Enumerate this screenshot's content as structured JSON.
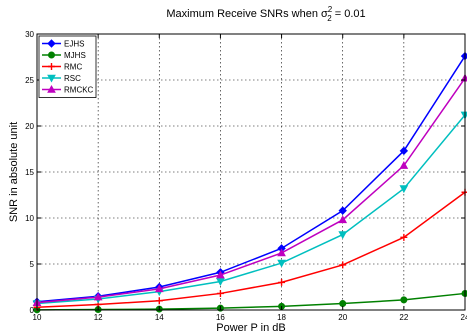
{
  "chart_data": {
    "type": "line",
    "title": "Maximum Receive SNRs when σ",
    "title_sigma_sup": "2",
    "title_sigma_sub": "2",
    "title_suffix": " = 0.01",
    "xlabel": "Power P in dB",
    "ylabel": "SNR in absolute unit",
    "xlim": [
      10,
      24
    ],
    "ylim": [
      0,
      30
    ],
    "xticks": [
      10,
      12,
      14,
      16,
      18,
      20,
      22,
      24
    ],
    "yticks": [
      0,
      5,
      10,
      15,
      20,
      25,
      30
    ],
    "grid": true,
    "legend_position": "top-left",
    "x": [
      10,
      12,
      14,
      16,
      18,
      20,
      22,
      24
    ],
    "series": [
      {
        "name": "EJHS",
        "color": "#0000ff",
        "marker": "diamond",
        "values": [
          0.9,
          1.5,
          2.5,
          4.1,
          6.7,
          10.8,
          17.3,
          27.6
        ]
      },
      {
        "name": "MJHS",
        "color": "#008000",
        "marker": "circle",
        "values": [
          0.02,
          0.05,
          0.1,
          0.2,
          0.4,
          0.7,
          1.1,
          1.8
        ]
      },
      {
        "name": "RMC",
        "color": "#ff0000",
        "marker": "plus",
        "values": [
          0.3,
          0.6,
          1.0,
          1.8,
          3.0,
          4.9,
          7.9,
          12.8
        ]
      },
      {
        "name": "RSC",
        "color": "#00bfbf",
        "marker": "triangle-down",
        "values": [
          0.7,
          1.2,
          2.0,
          3.1,
          5.1,
          8.2,
          13.2,
          21.2
        ]
      },
      {
        "name": "RMCKC",
        "color": "#bf00bf",
        "marker": "triangle-up",
        "values": [
          0.8,
          1.4,
          2.3,
          3.8,
          6.2,
          9.8,
          15.7,
          25.2
        ]
      }
    ]
  }
}
